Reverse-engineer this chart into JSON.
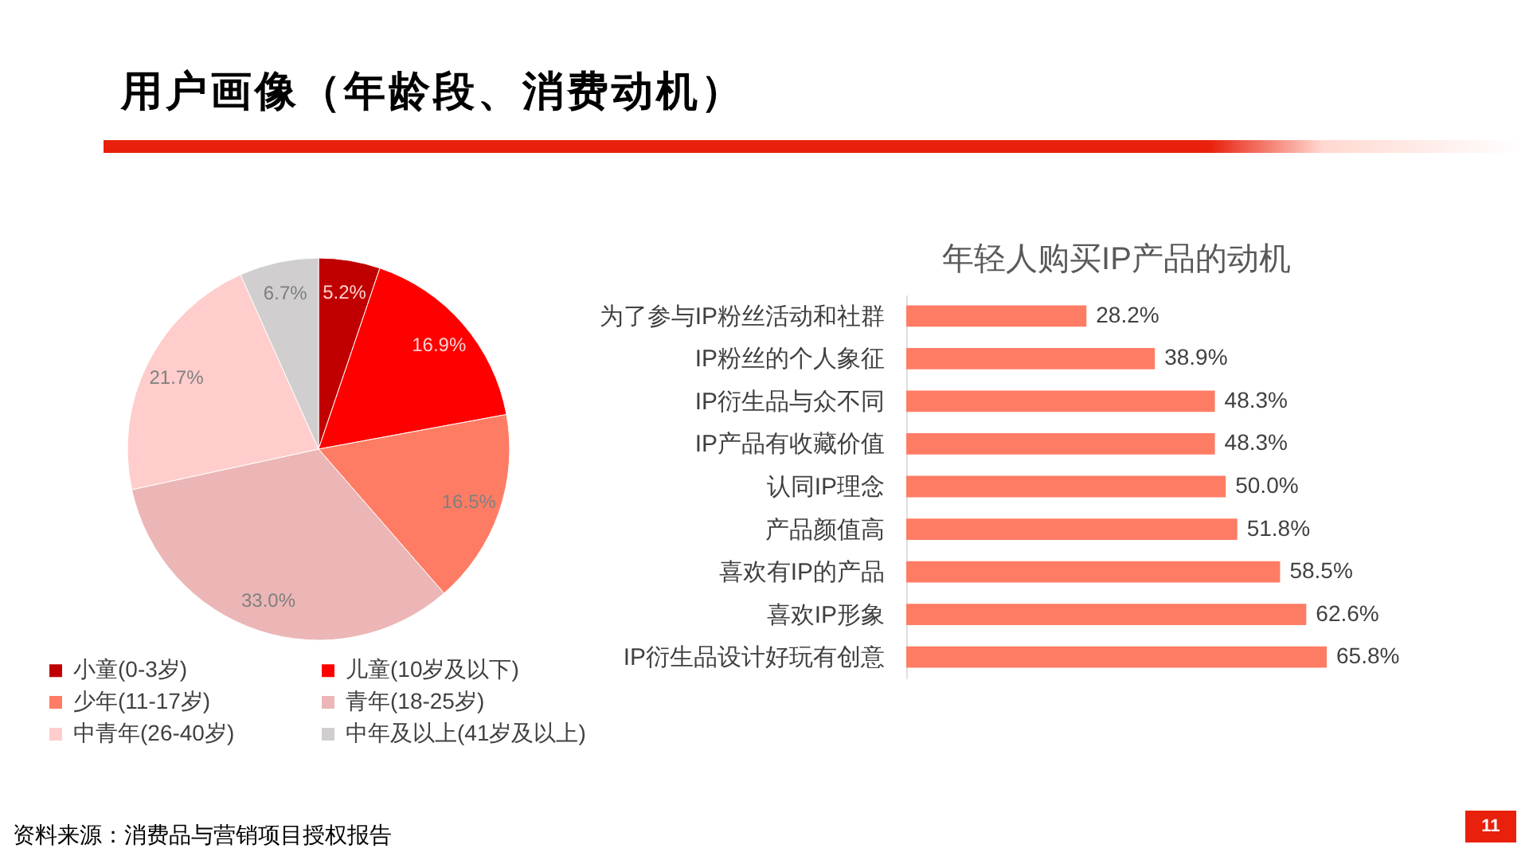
{
  "chart_data": [
    {
      "type": "pie",
      "title": "用户画像（年龄段、消费动机）",
      "annotations": [
        "资料来源：消费品与营销项目授权报告",
        "11"
      ],
      "categories": [
        "小童(0-3岁)",
        "儿童(10岁及以下)",
        "少年(11-17岁)",
        "青年(18-25岁)",
        "中青年(26-40岁)",
        "中年及以上(41岁及以上)"
      ],
      "values": [
        5.2,
        16.9,
        16.5,
        33.0,
        21.7,
        6.7
      ],
      "value_labels": [
        "5.2%",
        "16.9%",
        "16.5%",
        "33.0%",
        "21.7%",
        "6.7%"
      ],
      "colors": [
        "#c00000",
        "#ff0000",
        "#ff7c64",
        "#ecb6b6",
        "#ffcdcb",
        "#d0cece"
      ],
      "legend": "bottom"
    },
    {
      "type": "bar",
      "orientation": "horizontal",
      "title": "年轻人购买IP产品的动机",
      "categories": [
        "为了参与IP粉丝活动和社群",
        "IP粉丝的个人象征",
        "IP衍生品与众不同",
        "IP产品有收藏价值",
        "认同IP理念",
        "产品颜值高",
        "喜欢有IP的产品",
        "喜欢IP形象",
        "IP衍生品设计好玩有创意"
      ],
      "values": [
        28.2,
        38.9,
        48.3,
        48.3,
        50.0,
        51.8,
        58.5,
        62.6,
        65.8
      ],
      "value_labels": [
        "28.2%",
        "38.9%",
        "48.3%",
        "48.3%",
        "50.0%",
        "51.8%",
        "58.5%",
        "62.6%",
        "65.8%"
      ],
      "color": "#ff7c64"
    }
  ]
}
